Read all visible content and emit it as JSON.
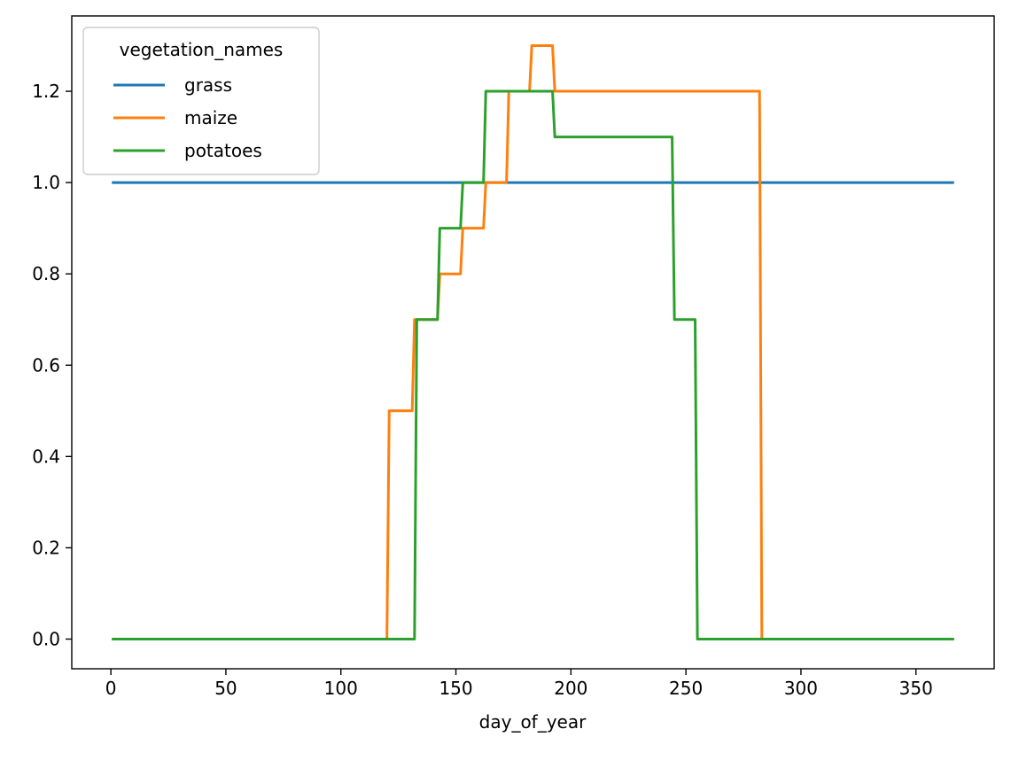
{
  "chart_data": {
    "type": "line",
    "title": "",
    "xlabel": "day_of_year",
    "ylabel": "",
    "xlim": [
      -17,
      384
    ],
    "ylim": [
      -0.065,
      1.365
    ],
    "xticks": [
      0,
      50,
      100,
      150,
      200,
      250,
      300,
      350
    ],
    "xtick_labels": [
      "0",
      "50",
      "100",
      "150",
      "200",
      "250",
      "300",
      "350"
    ],
    "yticks": [
      0.0,
      0.2,
      0.4,
      0.6,
      0.8,
      1.0,
      1.2
    ],
    "ytick_labels": [
      "0.0",
      "0.2",
      "0.4",
      "0.6",
      "0.8",
      "1.0",
      "1.2"
    ],
    "grid": false,
    "legend": {
      "title": "vegetation_names",
      "placement": "top-left",
      "entries": [
        "grass",
        "maize",
        "potatoes"
      ]
    },
    "series": [
      {
        "name": "grass",
        "color": "#1f77b4",
        "x": [
          1,
          366
        ],
        "y": [
          1.0,
          1.0
        ]
      },
      {
        "name": "maize",
        "color": "#ff7f0e",
        "x": [
          1,
          120,
          121,
          131,
          132,
          142,
          143,
          152,
          153,
          162,
          163,
          172,
          173,
          182,
          183,
          192,
          193,
          282,
          283,
          366
        ],
        "y": [
          0,
          0,
          0.5,
          0.5,
          0.7,
          0.7,
          0.8,
          0.8,
          0.9,
          0.9,
          1.0,
          1.0,
          1.2,
          1.2,
          1.3,
          1.3,
          1.2,
          1.2,
          0,
          0
        ]
      },
      {
        "name": "potatoes",
        "color": "#2ca02c",
        "x": [
          1,
          132,
          133,
          142,
          143,
          152,
          153,
          162,
          163,
          192,
          193,
          244,
          245,
          254,
          255,
          366
        ],
        "y": [
          0,
          0,
          0.7,
          0.7,
          0.9,
          0.9,
          1.0,
          1.0,
          1.2,
          1.2,
          1.1,
          1.1,
          0.7,
          0.7,
          0,
          0
        ]
      }
    ]
  }
}
